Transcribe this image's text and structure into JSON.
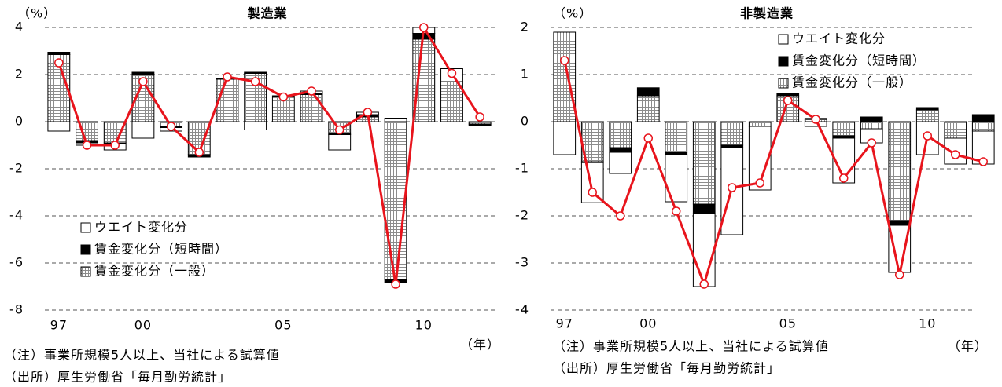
{
  "chart_data": [
    {
      "type": "bar",
      "stacked": true,
      "title": "製造業",
      "y_unit": "（%）",
      "x_unit": "（年）",
      "notes": [
        "（注）事業所規模5人以上、当社による試算値",
        "（出所）厚生労働省「毎月勤労統計」"
      ],
      "categories": [
        "97",
        null,
        null,
        "00",
        null,
        null,
        null,
        null,
        "05",
        null,
        null,
        null,
        null,
        "10",
        null,
        null
      ],
      "series": [
        {
          "name": "ウエイト変化分",
          "color": "#ffffff",
          "values": [
            -0.4,
            -0.1,
            -0.25,
            -0.7,
            -0.15,
            0,
            0,
            -0.35,
            0,
            0.1,
            -0.65,
            0.1,
            0.15,
            0.25,
            0.55,
            0
          ]
        },
        {
          "name": "賃金変化分（短時間）",
          "color": "#000000",
          "values": [
            0.1,
            -0.1,
            -0.05,
            0.1,
            -0.05,
            -0.1,
            0.05,
            0.05,
            0.05,
            0.05,
            -0.05,
            0.1,
            -0.15,
            0.25,
            0,
            -0.05
          ]
        },
        {
          "name": "賃金変化分（一般）",
          "color": "#8c8c8c",
          "pattern": "grid",
          "values": [
            2.85,
            -0.8,
            -0.9,
            2.0,
            -0.2,
            -1.4,
            1.8,
            2.05,
            1.05,
            1.15,
            -0.5,
            0.2,
            -6.7,
            3.5,
            1.7,
            -0.1
          ]
        }
      ],
      "total": {
        "color": "#e8141c",
        "values": [
          2.5,
          -1.0,
          -1.0,
          1.7,
          -0.2,
          -1.3,
          1.9,
          1.7,
          1.05,
          1.3,
          -0.35,
          0.4,
          -6.9,
          4.0,
          2.05,
          0.2
        ]
      },
      "ylim": [
        -8,
        4
      ],
      "yticks": [
        4,
        2,
        0,
        -2,
        -4,
        -6,
        -8
      ],
      "negative_tick_color": "#e8141c",
      "grid": "dashed",
      "legend_position": "lower-left"
    },
    {
      "type": "bar",
      "stacked": true,
      "title": "非製造業",
      "y_unit": "（%）",
      "x_unit": "（年）",
      "notes": [
        "（注）事業所規模5人以上、当社による試算値",
        "（出所）厚生労働省「毎月勤労統計」"
      ],
      "categories": [
        "97",
        null,
        null,
        "00",
        null,
        null,
        null,
        null,
        "05",
        null,
        null,
        null,
        null,
        "10",
        null,
        null
      ],
      "series": [
        {
          "name": "ウエイト変化分",
          "color": "#ffffff",
          "values": [
            -0.7,
            -0.85,
            -0.45,
            0,
            -1.0,
            -1.55,
            -1.85,
            -1.35,
            0,
            -0.1,
            -0.95,
            -0.3,
            -1.0,
            -0.7,
            -0.55,
            -0.7
          ]
        },
        {
          "name": "賃金変化分（短時間）",
          "color": "#000000",
          "values": [
            0,
            -0.02,
            -0.1,
            0.17,
            -0.05,
            -0.2,
            -0.05,
            0,
            0.05,
            0.02,
            -0.05,
            0.1,
            -0.1,
            0.05,
            0,
            0.15
          ]
        },
        {
          "name": "賃金変化分（一般）",
          "color": "#8c8c8c",
          "pattern": "grid",
          "values": [
            1.9,
            -0.85,
            -0.55,
            0.55,
            -0.65,
            -1.75,
            -0.5,
            -0.1,
            0.55,
            0.05,
            -0.3,
            -0.15,
            -2.1,
            0.25,
            -0.35,
            -0.2
          ]
        }
      ],
      "total": {
        "color": "#e8141c",
        "values": [
          1.3,
          -1.5,
          -2.0,
          -0.35,
          -1.9,
          -3.45,
          -1.4,
          -1.3,
          0.45,
          0.05,
          -1.2,
          -0.45,
          -3.25,
          -0.3,
          -0.7,
          -0.85
        ]
      },
      "ylim": [
        -4,
        2
      ],
      "yticks": [
        2,
        1,
        0,
        -1,
        -2,
        -3,
        -4
      ],
      "negative_tick_color": "#e8141c",
      "grid": "dashed",
      "legend_position": "upper-right"
    }
  ]
}
